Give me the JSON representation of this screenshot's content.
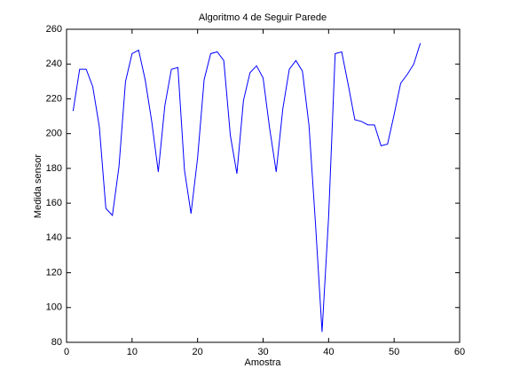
{
  "chart_data": {
    "type": "line",
    "title": "Algoritmo 4 de Seguir Parede",
    "xlabel": "Amostra",
    "ylabel": "Medida sensor",
    "x": [
      1,
      2,
      3,
      4,
      5,
      6,
      7,
      8,
      9,
      10,
      11,
      12,
      13,
      14,
      15,
      16,
      17,
      18,
      19,
      20,
      21,
      22,
      23,
      24,
      25,
      26,
      27,
      28,
      29,
      30,
      31,
      32,
      33,
      34,
      35,
      36,
      37,
      38,
      39,
      40,
      41,
      42,
      43,
      44,
      45,
      46,
      47,
      48,
      49,
      50,
      51,
      52,
      53,
      54
    ],
    "series": [
      {
        "color": "#0000ff",
        "values": [
          213,
          237,
          237,
          227,
          204,
          157,
          153,
          181,
          230,
          246,
          248,
          231,
          207,
          178,
          216,
          237,
          238,
          179,
          154,
          186,
          231,
          246,
          247,
          242,
          199,
          177,
          219,
          235,
          239,
          232,
          203,
          178,
          214,
          237,
          242,
          236,
          205,
          148,
          86,
          152,
          246,
          247,
          228,
          208,
          207,
          205,
          205,
          193,
          194,
          211,
          229,
          234,
          240,
          252
        ]
      }
    ],
    "xlim": [
      0,
      60
    ],
    "xticks": [
      0,
      10,
      20,
      30,
      40,
      50,
      60
    ],
    "ylim": [
      80,
      260
    ],
    "yticks": [
      80,
      100,
      120,
      140,
      160,
      180,
      200,
      220,
      240,
      260
    ],
    "grid": false
  }
}
